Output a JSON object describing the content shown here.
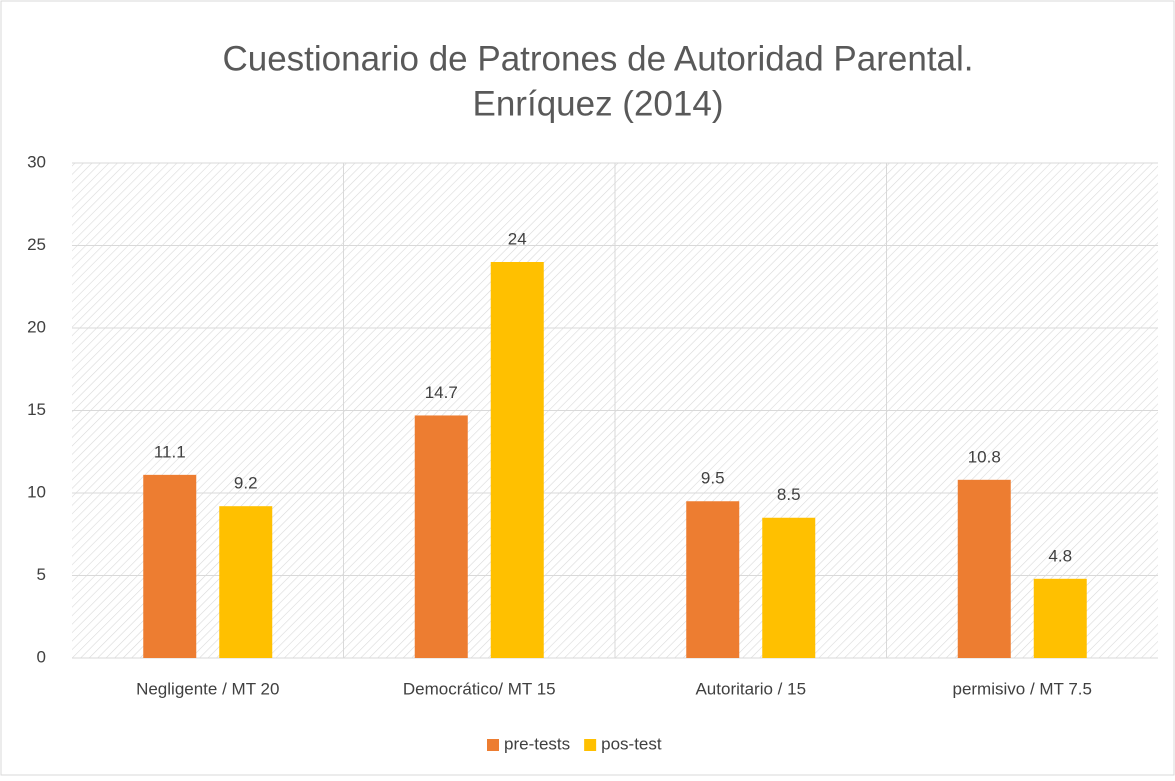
{
  "chart_data": {
    "type": "bar",
    "title": [
      "Cuestionario de Patrones de Autoridad Parental.",
      "Enríquez (2014)"
    ],
    "categories": [
      "Negligente / MT 20",
      "Democrático/ MT 15",
      "Autoritario / 15",
      "permisivo / MT 7.5"
    ],
    "series": [
      {
        "name": "pre-tests",
        "color": "#ed7d31",
        "values": [
          11.1,
          14.7,
          9.5,
          10.8
        ]
      },
      {
        "name": "pos-test",
        "color": "#ffc000",
        "values": [
          9.2,
          24,
          8.5,
          4.8
        ]
      }
    ],
    "ylim": [
      0,
      30
    ],
    "yticks": [
      0,
      5,
      10,
      15,
      20,
      25,
      30
    ],
    "grid": true,
    "legend": "bottom"
  }
}
